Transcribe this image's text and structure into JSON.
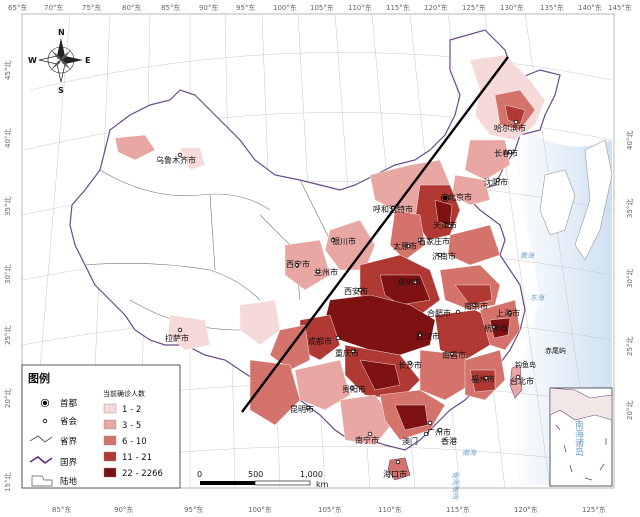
{
  "map": {
    "top_longitudes": [
      "65°东",
      "70°东",
      "75°东",
      "80°东",
      "85°东",
      "90°东",
      "95°东",
      "100°东",
      "105°东",
      "110°东",
      "115°东",
      "120°东",
      "125°东",
      "130°东",
      "135°东",
      "140°东",
      "145°东"
    ],
    "bottom_longitudes": [
      "85°东",
      "90°东",
      "95°东",
      "100°东",
      "105°东",
      "110°东",
      "115°东",
      "120°东",
      "125°东"
    ],
    "left_latitudes": [
      "45°北",
      "40°北",
      "35°北",
      "30°北",
      "25°北",
      "20°北",
      "15°北"
    ],
    "right_latitudes": [
      "40°北",
      "35°北",
      "30°北",
      "25°北",
      "20°北"
    ],
    "compass": {
      "n": "N",
      "s": "S",
      "e": "E",
      "w": "W"
    },
    "cities": [
      "哈尔滨市",
      "长春市",
      "沈阳市",
      "乌鲁木齐市",
      "呼和浩特市",
      "北京市",
      "天津市",
      "石家庄市",
      "太原市",
      "济南市",
      "银川市",
      "西宁市",
      "兰州市",
      "郑州市",
      "西安市",
      "南京市",
      "上海市",
      "合肥市",
      "杭州市",
      "武汉市",
      "成都市",
      "重庆市",
      "南昌市",
      "长沙市",
      "福州市",
      "台北市",
      "贵阳市",
      "昆明市",
      "广州市",
      "香港",
      "澳门",
      "南宁市",
      "海口市",
      "拉萨市"
    ],
    "sea_labels": [
      "黄海",
      "东海",
      "南海"
    ],
    "island_labels": [
      "赤尾屿",
      "钓鱼岛"
    ],
    "south_sea_islands": "南海诸岛",
    "inset_label": "南海诸岛"
  },
  "legend": {
    "title": "图例",
    "capital": "首都",
    "provincial_capital": "省会",
    "province_border": "省界",
    "national_border": "国界",
    "land": "陆地",
    "class_title": "当前确诊人数",
    "classes": [
      {
        "range": "1 - 2",
        "color": "#f6d9d9"
      },
      {
        "range": "3 - 5",
        "color": "#e8a7a3"
      },
      {
        "range": "6 - 10",
        "color": "#d4726c"
      },
      {
        "range": "11 - 21",
        "color": "#b03a33"
      },
      {
        "range": "22 - 2266",
        "color": "#7e1212"
      }
    ]
  },
  "scale": {
    "ticks": [
      "0",
      "500",
      "1,000"
    ],
    "unit": "km"
  },
  "colors": {
    "sea": "#b9d3ec",
    "border": "#555555",
    "national": "#5a2a82",
    "line": "#000000"
  }
}
